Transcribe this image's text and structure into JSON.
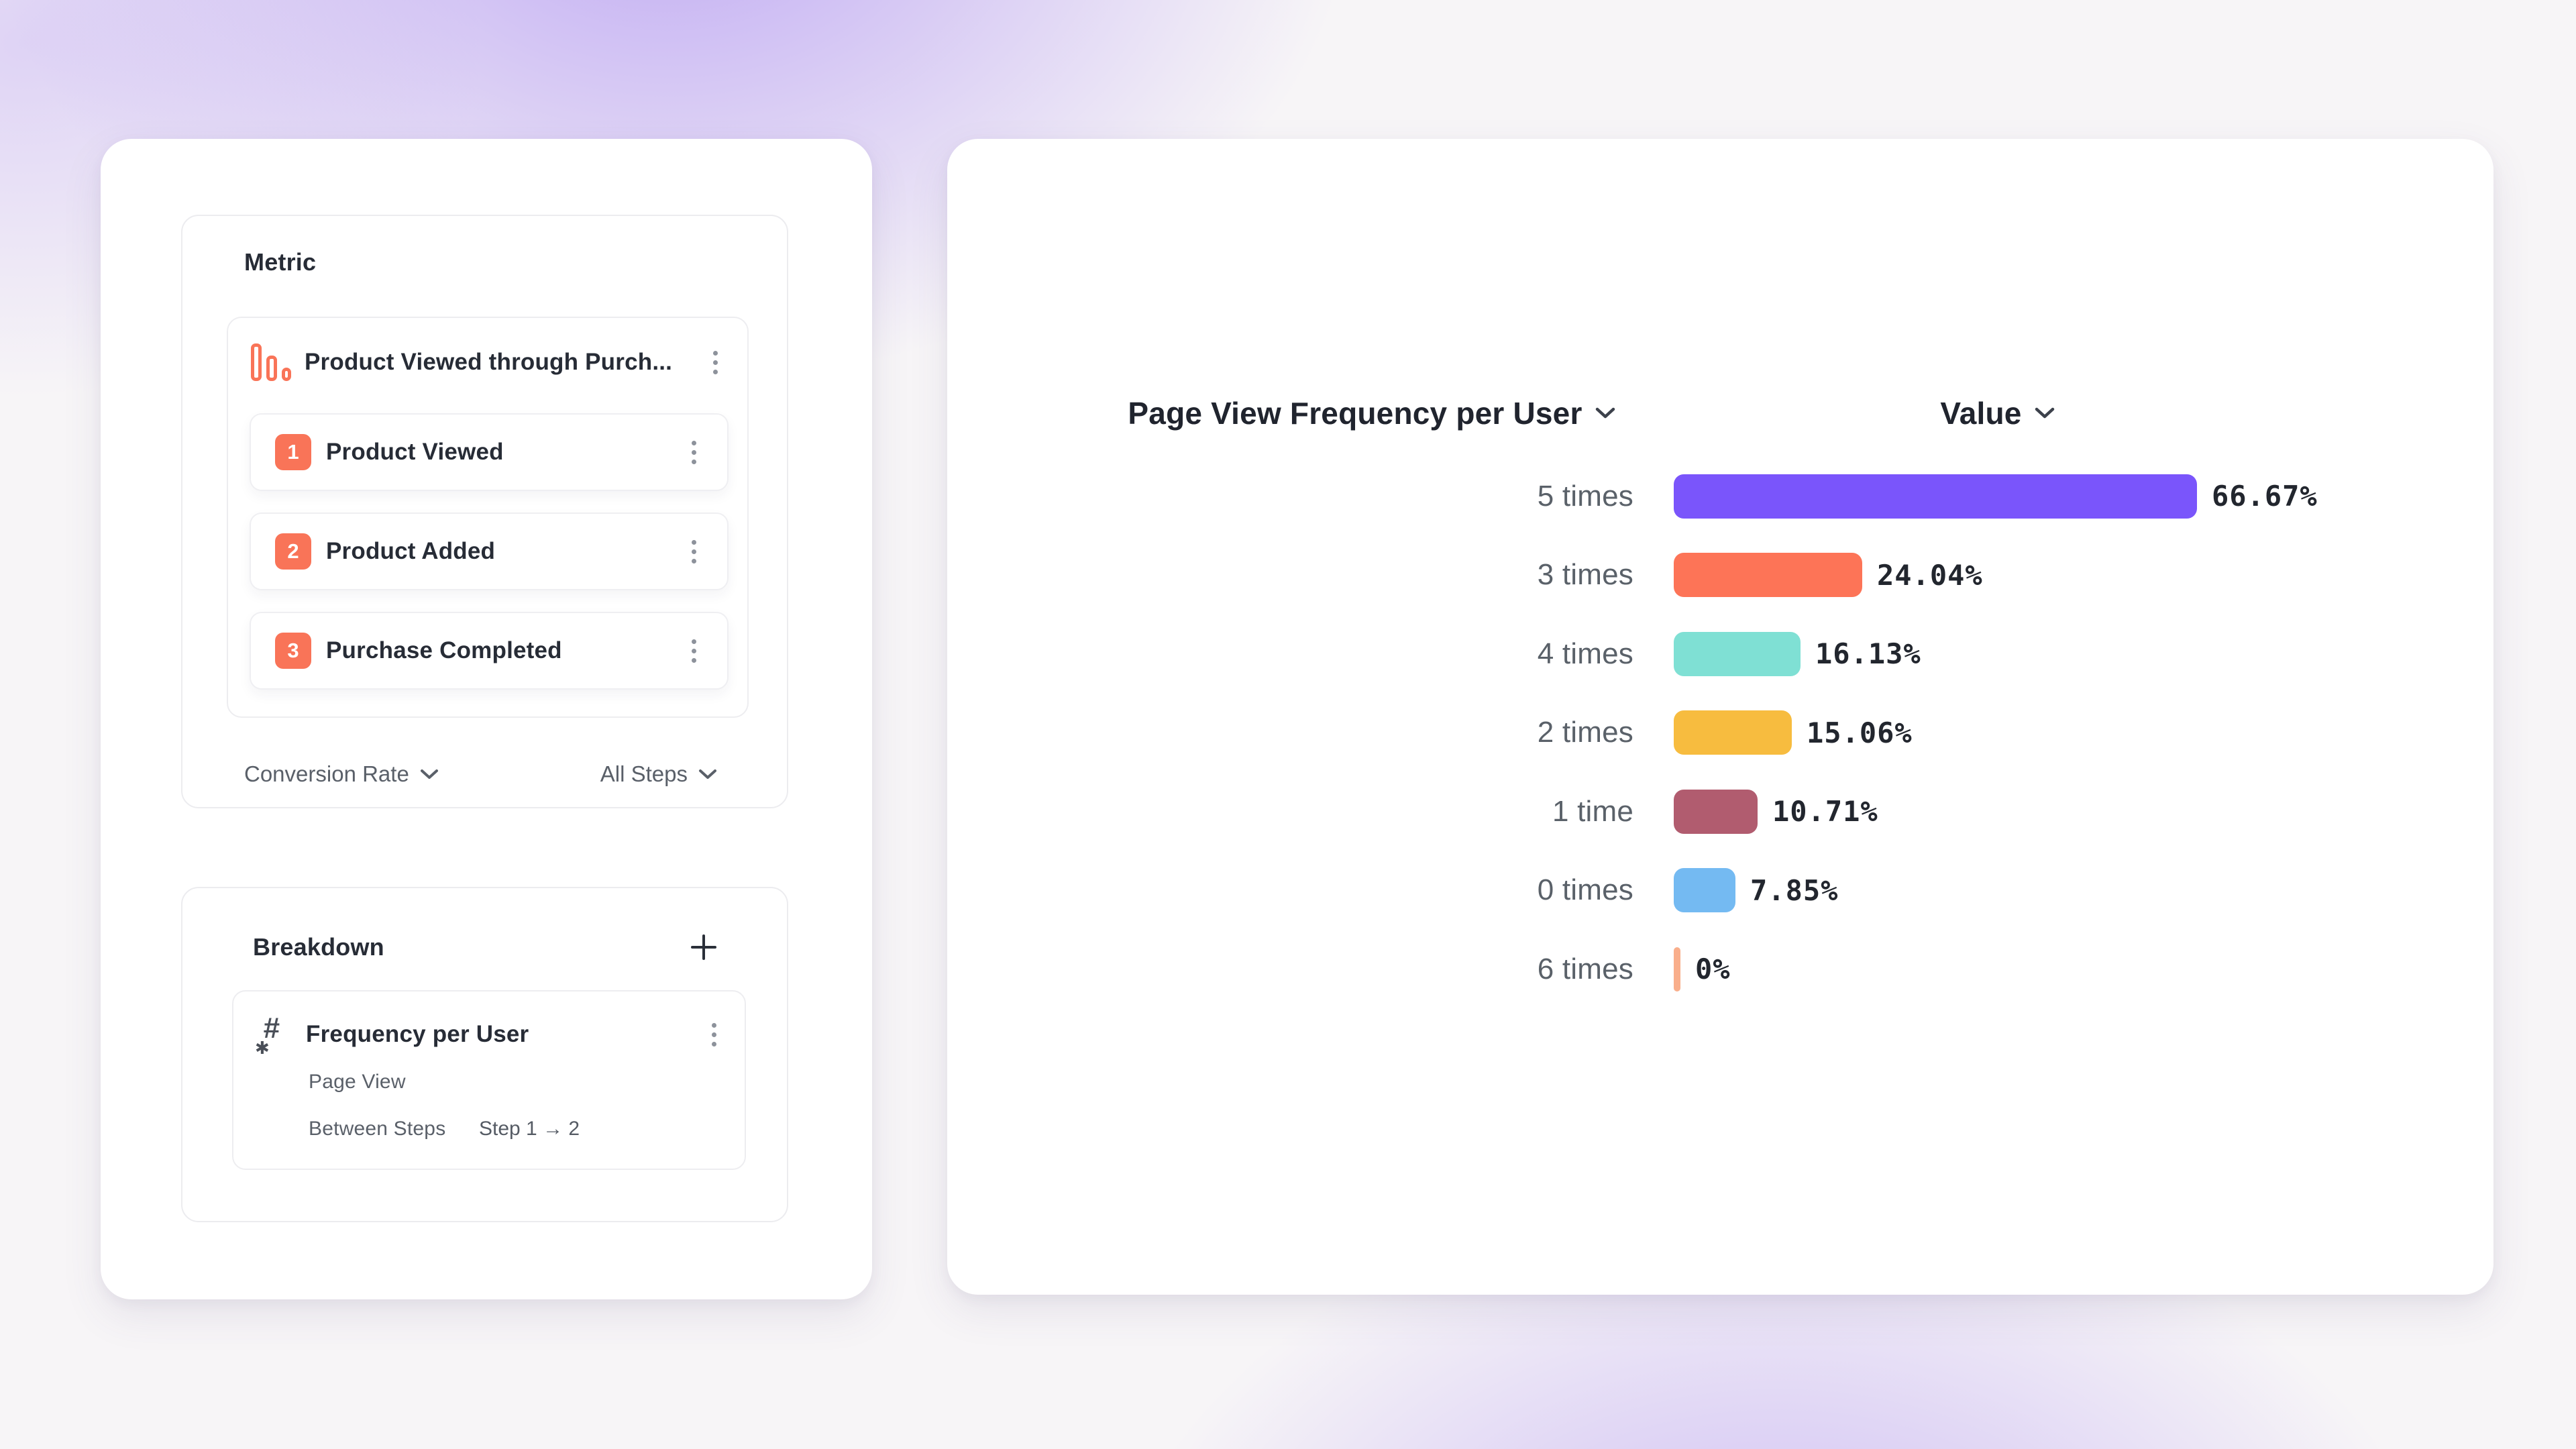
{
  "left_panel": {
    "metric_section": {
      "title": "Metric",
      "funnel": {
        "icon": "funnel-bars-icon",
        "title": "Product Viewed through Purch...",
        "menu_icon": "kebab-menu-icon",
        "steps": [
          {
            "number": "1",
            "label": "Product Viewed"
          },
          {
            "number": "2",
            "label": "Product Added"
          },
          {
            "number": "3",
            "label": "Purchase Completed"
          }
        ]
      },
      "footer": {
        "measure_dropdown": "Conversion Rate",
        "steps_dropdown": "All Steps",
        "dropdown_icon": "chevron-down-icon"
      }
    },
    "breakdown_section": {
      "title": "Breakdown",
      "add_icon": "plus-icon",
      "item": {
        "icon": "hash-asterisk-icon",
        "title": "Frequency per User",
        "menu_icon": "kebab-menu-icon",
        "event": "Page View",
        "scope_label": "Between Steps",
        "scope_value": "Step 1 → 2"
      }
    }
  },
  "chart_panel": {
    "x_axis_dropdown": "Page View Frequency per User",
    "value_dropdown": "Value",
    "dropdown_icon": "chevron-down-icon"
  },
  "chart_data": {
    "type": "bar",
    "orientation": "horizontal",
    "title": "Page View Frequency per User",
    "value_column": "Value",
    "categories": [
      "5 times",
      "3 times",
      "4 times",
      "2 times",
      "1 time",
      "0 times",
      "6 times"
    ],
    "values": [
      66.67,
      24.04,
      16.13,
      15.06,
      10.71,
      7.85,
      0
    ],
    "value_labels": [
      "66.67%",
      "24.04%",
      "16.13%",
      "15.06%",
      "10.71%",
      "7.85%",
      "0%"
    ],
    "bar_colors": [
      "#7a55fb",
      "#fd7457",
      "#7fe0d4",
      "#f7bc3f",
      "#b15c6f",
      "#74baf2",
      "#f9ae8b"
    ],
    "xlim": [
      0,
      70
    ],
    "grid": false,
    "legend": "none",
    "sorted": "descending by value"
  },
  "colors": {
    "accent_coral": "#f97458",
    "text_dark": "#272c36",
    "text_gray": "#5a6069",
    "card_border": "#ececef",
    "background_purple": "#916bee"
  }
}
